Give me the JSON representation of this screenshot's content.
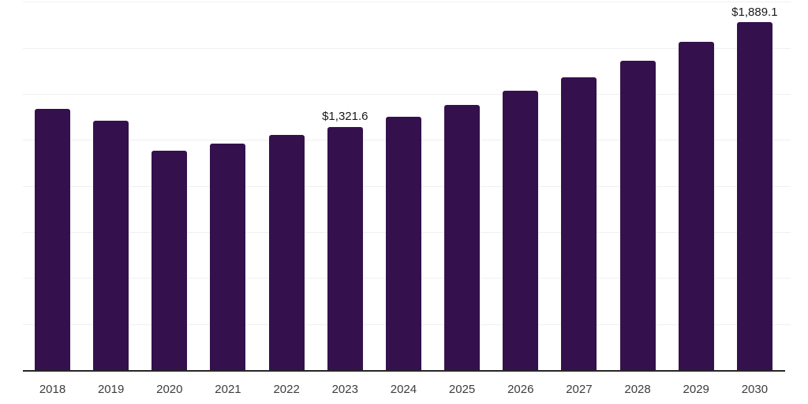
{
  "chart_data": {
    "type": "bar",
    "title": "",
    "xlabel": "",
    "ylabel": "",
    "categories": [
      "2018",
      "2019",
      "2020",
      "2021",
      "2022",
      "2023",
      "2024",
      "2025",
      "2026",
      "2027",
      "2028",
      "2029",
      "2030"
    ],
    "values": [
      1420,
      1354,
      1193,
      1230,
      1277,
      1321.6,
      1376,
      1442,
      1516,
      1592,
      1681,
      1784,
      1889.1
    ],
    "data_labels": [
      "",
      "",
      "",
      "",
      "",
      "$1,321.6",
      "",
      "",
      "",
      "",
      "",
      "",
      "$1,889.1"
    ],
    "ylim": [
      0,
      2000
    ],
    "gridline_values": [
      250,
      500,
      750,
      1000,
      1250,
      1500,
      1750,
      2000
    ],
    "grid": "horizontal",
    "legend_position": "none",
    "y_axis_tick_labels": "none",
    "colors": {
      "bar": "#34114d",
      "axis_line": "#262626",
      "gridline": "#f0f0f0",
      "data_label": "#1a1a1a",
      "tick_label": "#3d3d3d",
      "background": "#ffffff"
    }
  }
}
